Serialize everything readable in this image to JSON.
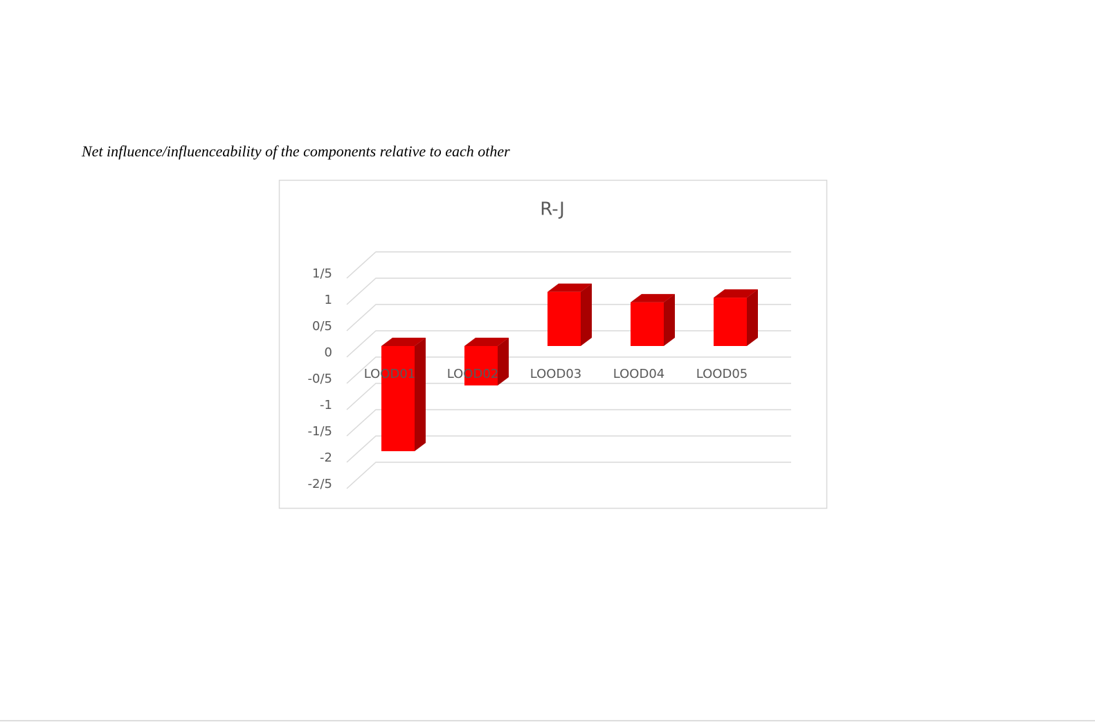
{
  "caption": "Net influence/influenceability of the components relative to each other",
  "chart_data": {
    "type": "bar3d",
    "title": "R-J",
    "categories": [
      "LOOD01",
      "LOOD02",
      "LOOD03",
      "LOOD04",
      "LOOD05"
    ],
    "values": [
      -2.0,
      -0.75,
      1.03,
      0.83,
      0.92
    ],
    "color": "#ff0000",
    "ylim": [
      -2.5,
      1.5
    ],
    "yticks": [
      {
        "value": -2.5,
        "label": "-2/5"
      },
      -2,
      {
        "value": -1.5,
        "label": "-1/5"
      },
      -1,
      {
        "value": -0.5,
        "label": "-0/5"
      },
      0,
      {
        "value": 0.5,
        "label": "0/5"
      },
      1,
      {
        "value": 1.5,
        "label": "1/5"
      }
    ],
    "grid": true
  }
}
